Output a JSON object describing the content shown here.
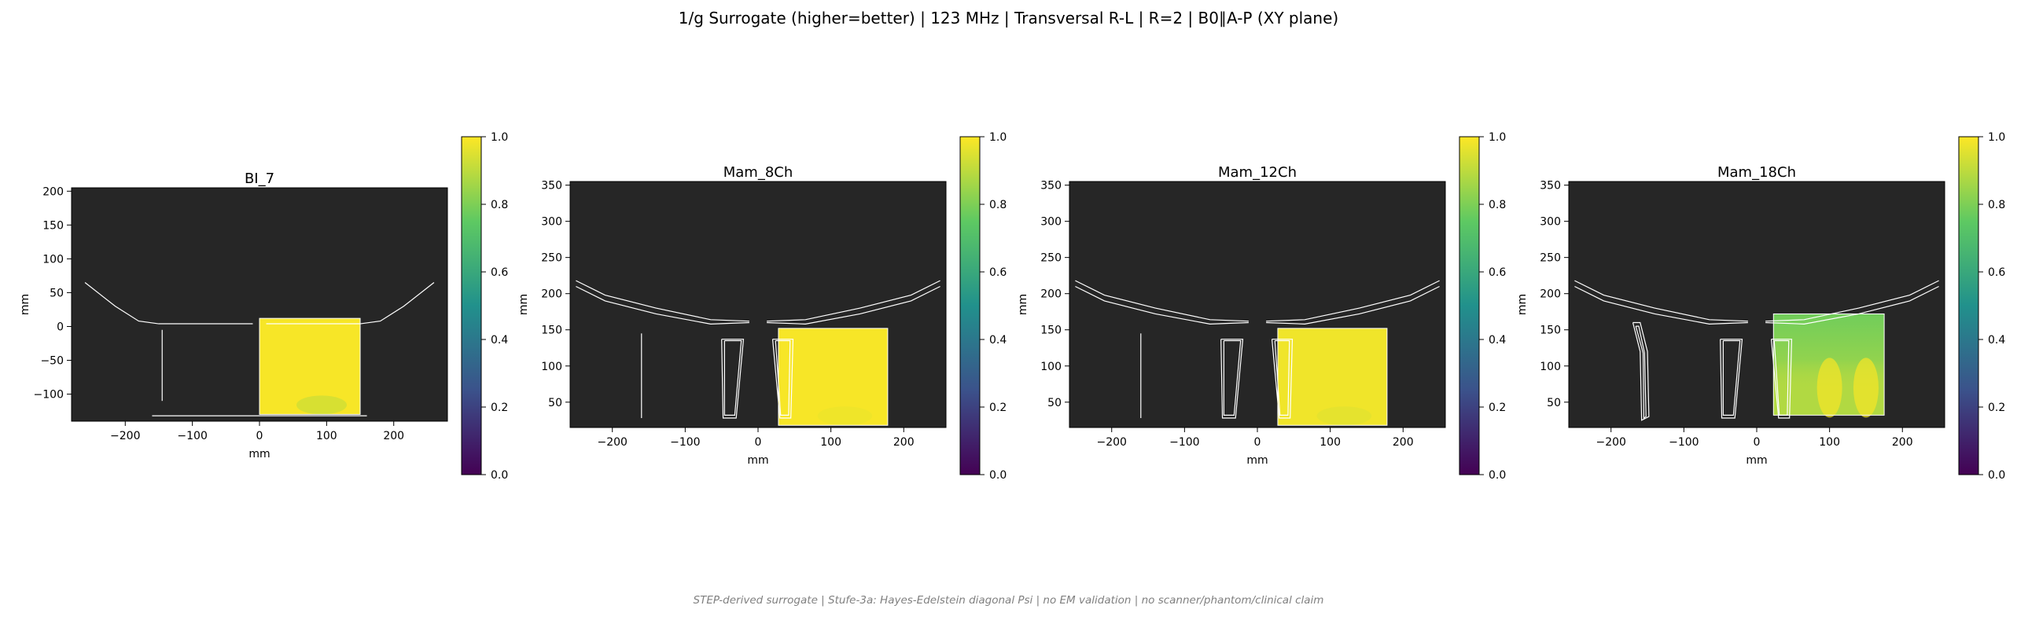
{
  "figure": {
    "suptitle": "1/g Surrogate (higher=better) | 123 MHz | Transversal R-L | R=2 | B0∥A-P (XY plane)",
    "footnote": "STEP-derived surrogate | Stufe-3a: Hayes-Edelstein diagonal Psi | no EM validation | no scanner/phantom/clinical claim"
  },
  "colors": {
    "background": "#262626",
    "outline": "#ffffff",
    "colormap": [
      "#440154",
      "#3b528b",
      "#21918c",
      "#5ec962",
      "#fde725"
    ]
  },
  "chart_data": [
    {
      "type": "heatmap",
      "title": "BI_7",
      "xlabel": "mm",
      "ylabel": "mm",
      "xlim": [
        -280,
        280
      ],
      "ylim": [
        -140,
        205
      ],
      "xticks": [
        -200,
        -100,
        0,
        100,
        200
      ],
      "yticks": [
        -100,
        -50,
        0,
        50,
        100,
        150,
        200
      ],
      "colorbar": {
        "min": 0.0,
        "max": 1.0,
        "ticks": [
          0.0,
          0.2,
          0.4,
          0.6,
          0.8,
          1.0
        ]
      },
      "field_region": {
        "x": [
          0,
          150
        ],
        "y": [
          -130,
          12
        ]
      },
      "field_value": 0.99,
      "field_min": 0.9,
      "grid": false
    },
    {
      "type": "heatmap",
      "title": "Mam_8Ch",
      "xlabel": "mm",
      "ylabel": "mm",
      "xlim": [
        -258,
        258
      ],
      "ylim": [
        15,
        355
      ],
      "xticks": [
        -200,
        -100,
        0,
        100,
        200
      ],
      "yticks": [
        50,
        100,
        150,
        200,
        250,
        300,
        350
      ],
      "colorbar": {
        "min": 0.0,
        "max": 1.0,
        "ticks": [
          0.0,
          0.2,
          0.4,
          0.6,
          0.8,
          1.0
        ]
      },
      "field_region": {
        "x": [
          28,
          178
        ],
        "y": [
          18,
          152
        ]
      },
      "field_value": 0.99,
      "field_min": 0.97,
      "grid": false
    },
    {
      "type": "heatmap",
      "title": "Mam_12Ch",
      "xlabel": "mm",
      "ylabel": "mm",
      "xlim": [
        -258,
        258
      ],
      "ylim": [
        15,
        355
      ],
      "xticks": [
        -200,
        -100,
        0,
        100,
        200
      ],
      "yticks": [
        50,
        100,
        150,
        200,
        250,
        300,
        350
      ],
      "colorbar": {
        "min": 0.0,
        "max": 1.0,
        "ticks": [
          0.0,
          0.2,
          0.4,
          0.6,
          0.8,
          1.0
        ]
      },
      "field_region": {
        "x": [
          28,
          178
        ],
        "y": [
          18,
          152
        ]
      },
      "field_value": 0.98,
      "field_min": 0.95,
      "grid": false
    },
    {
      "type": "heatmap",
      "title": "Mam_18Ch",
      "xlabel": "mm",
      "ylabel": "mm",
      "xlim": [
        -258,
        258
      ],
      "ylim": [
        15,
        355
      ],
      "xticks": [
        -200,
        -100,
        0,
        100,
        200
      ],
      "yticks": [
        50,
        100,
        150,
        200,
        250,
        300,
        350
      ],
      "colorbar": {
        "min": 0.0,
        "max": 1.0,
        "ticks": [
          0.0,
          0.2,
          0.4,
          0.6,
          0.8,
          1.0
        ]
      },
      "field_region": {
        "x": [
          23,
          175
        ],
        "y": [
          32,
          172
        ]
      },
      "field_value": 0.88,
      "field_min": 0.78,
      "grid": false
    }
  ]
}
